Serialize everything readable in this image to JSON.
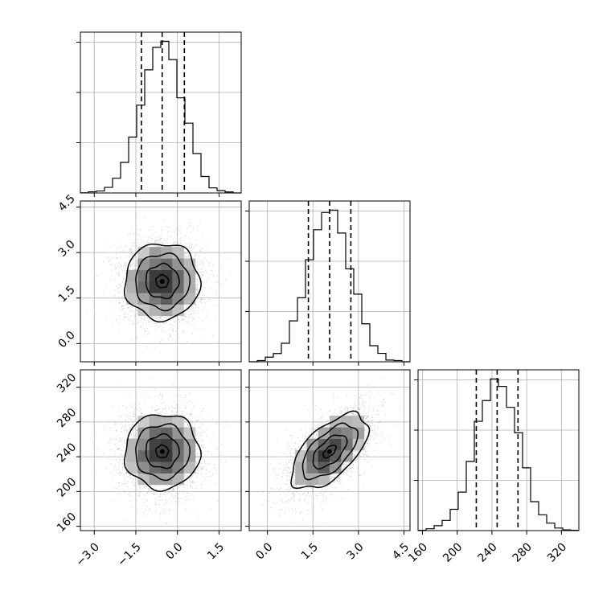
{
  "chart_data": {
    "type": "corner",
    "parameters": [
      {
        "index": 0,
        "range": [
          -3.5,
          2.3
        ],
        "ticks": [
          -3.0,
          -1.5,
          0.0,
          1.5
        ],
        "tick_labels": [
          "−3.0",
          "−1.5",
          "0.0",
          "1.5"
        ],
        "quantiles": [
          -1.3,
          -0.55,
          0.25
        ],
        "mean": -0.55,
        "sd": 0.75
      },
      {
        "index": 1,
        "range": [
          -0.6,
          4.7
        ],
        "ticks": [
          0.0,
          1.5,
          3.0,
          4.5
        ],
        "tick_labels": [
          "0.0",
          "1.5",
          "3.0",
          "4.5"
        ],
        "quantiles": [
          1.35,
          2.05,
          2.75
        ],
        "mean": 2.05,
        "sd": 0.7
      },
      {
        "index": 2,
        "range": [
          155,
          340
        ],
        "ticks": [
          160,
          200,
          240,
          280,
          320
        ],
        "tick_labels": [
          "160",
          "200",
          "240",
          "280",
          "320"
        ],
        "quantiles": [
          222,
          246,
          270
        ],
        "mean": 246,
        "sd": 24
      }
    ],
    "hist_bins": 20,
    "contours": true,
    "grid": true,
    "quantile_line_style": "dashed",
    "correlations": {
      "0-1": 0.0,
      "0-2": 0.0,
      "1-2": 0.6
    },
    "colors": {
      "line": "#000000",
      "points": "#999999",
      "grid": "#b0b0b0"
    }
  }
}
